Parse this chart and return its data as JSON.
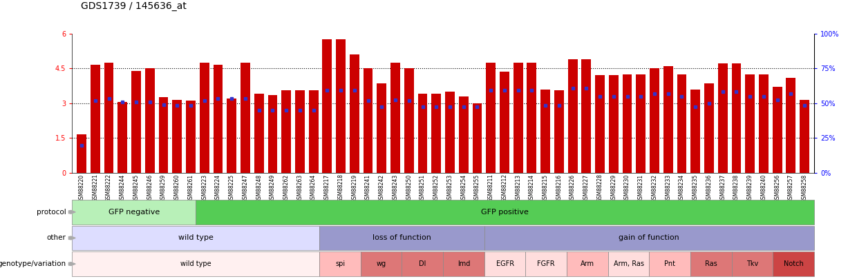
{
  "title": "GDS1739 / 145636_at",
  "samples": [
    "GSM88220",
    "GSM88221",
    "GSM88222",
    "GSM88244",
    "GSM88245",
    "GSM88246",
    "GSM88259",
    "GSM88260",
    "GSM88261",
    "GSM88223",
    "GSM88224",
    "GSM88225",
    "GSM88247",
    "GSM88248",
    "GSM88249",
    "GSM88262",
    "GSM88263",
    "GSM88264",
    "GSM88217",
    "GSM88218",
    "GSM88219",
    "GSM88241",
    "GSM88242",
    "GSM88243",
    "GSM88250",
    "GSM88251",
    "GSM88252",
    "GSM88253",
    "GSM88254",
    "GSM88255",
    "GSM88211",
    "GSM88212",
    "GSM88213",
    "GSM88214",
    "GSM88215",
    "GSM88216",
    "GSM88226",
    "GSM88227",
    "GSM88228",
    "GSM88229",
    "GSM88230",
    "GSM88231",
    "GSM88232",
    "GSM88233",
    "GSM88234",
    "GSM88235",
    "GSM88236",
    "GSM88237",
    "GSM88238",
    "GSM88239",
    "GSM88240",
    "GSM88256",
    "GSM88257",
    "GSM88258"
  ],
  "bar_values": [
    1.65,
    4.65,
    4.75,
    3.05,
    4.4,
    4.5,
    3.25,
    3.15,
    3.1,
    4.75,
    4.65,
    3.2,
    4.75,
    3.4,
    3.35,
    3.55,
    3.55,
    3.55,
    5.75,
    5.75,
    5.1,
    4.5,
    3.85,
    4.75,
    4.5,
    3.4,
    3.4,
    3.5,
    3.3,
    3.0,
    4.75,
    4.35,
    4.75,
    4.75,
    3.6,
    3.55,
    4.9,
    4.9,
    4.2,
    4.2,
    4.25,
    4.25,
    4.5,
    4.6,
    4.25,
    3.6,
    3.85,
    4.7,
    4.7,
    4.25,
    4.25,
    3.7,
    4.1,
    3.15
  ],
  "percentile_values": [
    1.2,
    3.1,
    3.2,
    3.05,
    3.05,
    3.05,
    2.95,
    2.9,
    2.9,
    3.1,
    3.2,
    3.2,
    3.2,
    2.7,
    2.7,
    2.7,
    2.7,
    2.7,
    3.55,
    3.55,
    3.55,
    3.1,
    2.85,
    3.15,
    3.1,
    2.85,
    2.85,
    2.85,
    2.85,
    2.85,
    3.55,
    3.55,
    3.55,
    3.55,
    2.9,
    2.9,
    3.65,
    3.65,
    3.3,
    3.3,
    3.3,
    3.3,
    3.4,
    3.4,
    3.3,
    2.85,
    3.0,
    3.5,
    3.5,
    3.3,
    3.3,
    3.15,
    3.4,
    2.9
  ],
  "protocol_groups": [
    {
      "label": "GFP negative",
      "start": 0,
      "end": 9,
      "color": "#b8f0b8"
    },
    {
      "label": "GFP positive",
      "start": 9,
      "end": 54,
      "color": "#55cc55"
    }
  ],
  "other_groups": [
    {
      "label": "wild type",
      "start": 0,
      "end": 18,
      "color": "#ccccff"
    },
    {
      "label": "loss of function",
      "start": 18,
      "end": 30,
      "color": "#9999dd"
    },
    {
      "label": "gain of function",
      "start": 30,
      "end": 54,
      "color": "#9999dd"
    }
  ],
  "genotype_groups": [
    {
      "label": "wild type",
      "start": 0,
      "end": 18,
      "color": "#fff0f0"
    },
    {
      "label": "spi",
      "start": 18,
      "end": 21,
      "color": "#ffbbbb"
    },
    {
      "label": "wg",
      "start": 21,
      "end": 24,
      "color": "#dd7777"
    },
    {
      "label": "Dl",
      "start": 24,
      "end": 27,
      "color": "#dd7777"
    },
    {
      "label": "lmd",
      "start": 27,
      "end": 30,
      "color": "#dd7777"
    },
    {
      "label": "EGFR",
      "start": 30,
      "end": 33,
      "color": "#ffdddd"
    },
    {
      "label": "FGFR",
      "start": 33,
      "end": 36,
      "color": "#ffdddd"
    },
    {
      "label": "Arm",
      "start": 36,
      "end": 39,
      "color": "#ffbbbb"
    },
    {
      "label": "Arm, Ras",
      "start": 39,
      "end": 42,
      "color": "#ffdddd"
    },
    {
      "label": "Pnt",
      "start": 42,
      "end": 45,
      "color": "#ffbbbb"
    },
    {
      "label": "Ras",
      "start": 45,
      "end": 48,
      "color": "#dd7777"
    },
    {
      "label": "Tkv",
      "start": 48,
      "end": 51,
      "color": "#dd7777"
    },
    {
      "label": "Notch",
      "start": 51,
      "end": 54,
      "color": "#cc4444"
    }
  ],
  "ylim": [
    0,
    6
  ],
  "yticks": [
    0,
    1.5,
    3.0,
    4.5,
    6
  ],
  "y2ticks": [
    0,
    25,
    50,
    75,
    100
  ],
  "bar_color": "#cc0000",
  "percentile_color": "#3333cc"
}
